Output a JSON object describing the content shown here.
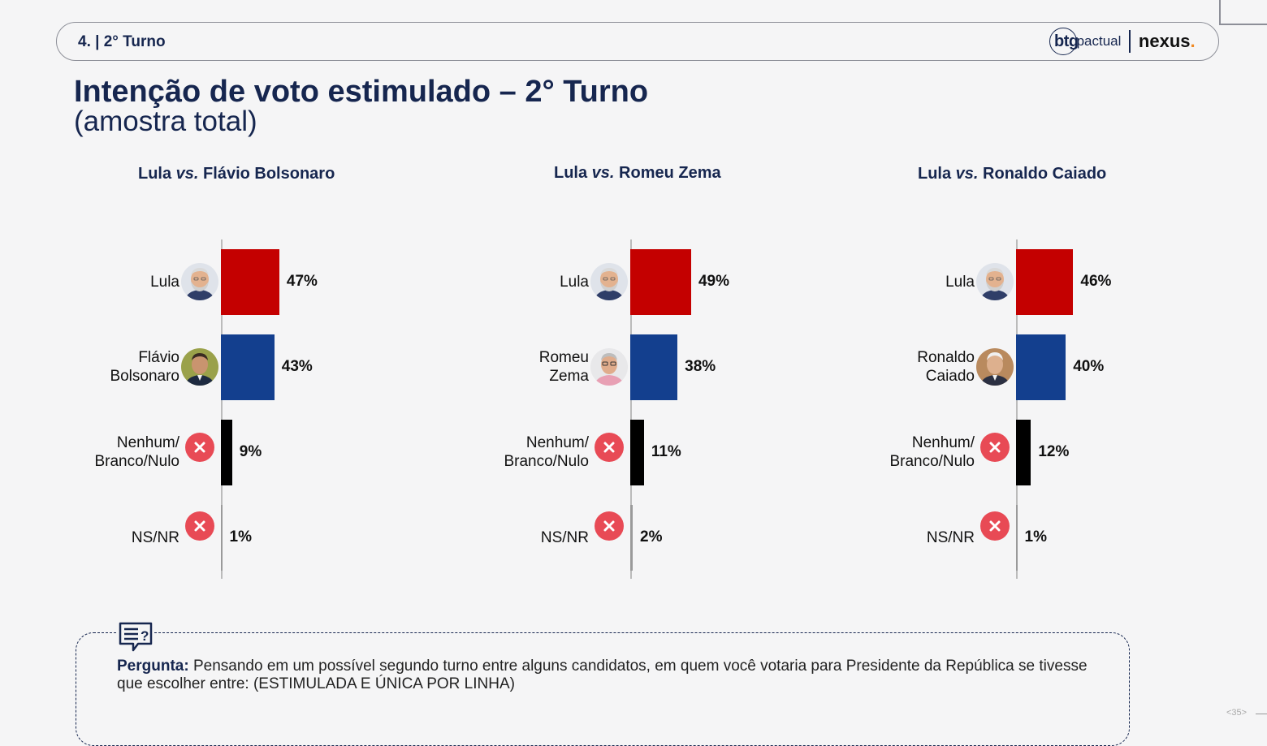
{
  "header": {
    "section": "4. | 2° Turno",
    "logo_btg": "btg",
    "logo_pactual": "pactual",
    "logo_nexus": "nexus",
    "logo_dot": "."
  },
  "title": "Intenção de voto estimulado – 2° Turno",
  "subtitle": "(amostra total)",
  "colors": {
    "lula": "#c40000",
    "opponent": "#133f8e",
    "nenhum": "#000000",
    "nsnr": "#9a9a9a",
    "x_icon": "#e84a55",
    "navy": "#16264f"
  },
  "chart_data": [
    {
      "type": "bar",
      "title_a": "Lula",
      "title_vs": "vs.",
      "title_b": "Flávio Bolsonaro",
      "categories": [
        "Lula",
        "Flávio Bolsonaro",
        "Nenhum/ Branco/Nulo",
        "NS/NR"
      ],
      "category_lines": [
        [
          "Lula"
        ],
        [
          "Flávio",
          "Bolsonaro"
        ],
        [
          "Nenhum/",
          "Branco/Nulo"
        ],
        [
          "NS/NR"
        ]
      ],
      "icons": [
        "lula-photo",
        "flavio-bolsonaro-photo",
        "x-icon",
        "x-icon"
      ],
      "values": [
        47,
        43,
        9,
        1
      ],
      "labels": [
        "47%",
        "43%",
        "9%",
        "1%"
      ]
    },
    {
      "type": "bar",
      "title_a": "Lula",
      "title_vs": "vs.",
      "title_b": "Romeu Zema",
      "categories": [
        "Lula",
        "Romeu Zema",
        "Nenhum/ Branco/Nulo",
        "NS/NR"
      ],
      "category_lines": [
        [
          "Lula"
        ],
        [
          "Romeu",
          "Zema"
        ],
        [
          "Nenhum/",
          "Branco/Nulo"
        ],
        [
          "NS/NR"
        ]
      ],
      "icons": [
        "lula-photo",
        "romeu-zema-photo",
        "x-icon",
        "x-icon"
      ],
      "values": [
        49,
        38,
        11,
        2
      ],
      "labels": [
        "49%",
        "38%",
        "11%",
        "2%"
      ]
    },
    {
      "type": "bar",
      "title_a": "Lula",
      "title_vs": "vs.",
      "title_b": "Ronaldo Caiado",
      "categories": [
        "Lula",
        "Ronaldo Caiado",
        "Nenhum/ Branco/Nulo",
        "NS/NR"
      ],
      "category_lines": [
        [
          "Lula"
        ],
        [
          "Ronaldo",
          "Caiado"
        ],
        [
          "Nenhum/",
          "Branco/Nulo"
        ],
        [
          "NS/NR"
        ]
      ],
      "icons": [
        "lula-photo",
        "ronaldo-caiado-photo",
        "x-icon",
        "x-icon"
      ],
      "values": [
        46,
        40,
        12,
        1
      ],
      "labels": [
        "46%",
        "40%",
        "12%",
        "1%"
      ]
    }
  ],
  "question": {
    "label": "Pergunta:",
    "text": "Pensando em um possível segundo turno entre alguns candidatos, em quem você votaria para Presidente da República se tivesse que escolher entre: (ESTIMULADA E ÚNICA POR LINHA)"
  },
  "page_number": "<35>"
}
